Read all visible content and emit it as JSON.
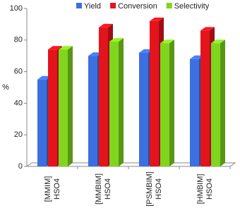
{
  "chart_data": {
    "type": "bar3d",
    "categories": [
      [
        "[MMIM]",
        "HSO4"
      ],
      [
        "[MMBIM]",
        "HSO4"
      ],
      [
        "[PSMBIM]",
        "HSO4"
      ],
      [
        "[HMBIM]",
        "HSO4"
      ]
    ],
    "series": [
      {
        "name": "Yield",
        "color": "#3c6fe0",
        "values": [
          55,
          70,
          72,
          68
        ]
      },
      {
        "name": "Conversion",
        "color": "#e3141c",
        "values": [
          74,
          88,
          92,
          86
        ]
      },
      {
        "name": "Selectivity",
        "color": "#80d61e",
        "values": [
          74,
          79,
          78,
          78
        ]
      }
    ],
    "ylabel": "%",
    "ylim": [
      0,
      100
    ],
    "yticks": [
      0,
      20,
      40,
      60,
      80,
      100
    ],
    "legend": "top"
  }
}
